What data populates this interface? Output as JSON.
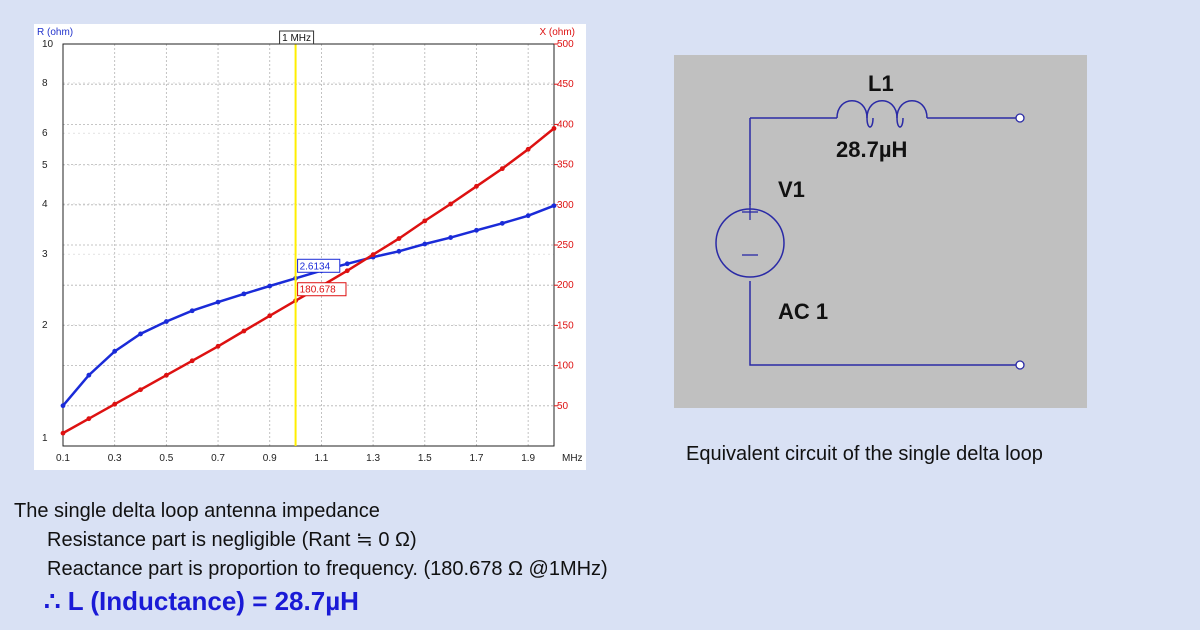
{
  "chart_data": {
    "type": "line",
    "left_axis": {
      "label": "R (ohm)",
      "scale": "log",
      "range": [
        1,
        10
      ],
      "ticks": [
        "1",
        "2",
        "3",
        "4",
        "5",
        "6",
        "8",
        "10"
      ],
      "color": "#2233cc"
    },
    "right_axis": {
      "label": "X (ohm)",
      "range": [
        0,
        500
      ],
      "ticks": [
        "50",
        "100",
        "150",
        "200",
        "250",
        "300",
        "350",
        "400",
        "450",
        "500"
      ],
      "color": "#dd1111"
    },
    "x_axis": {
      "unit": "MHz",
      "range": [
        0.1,
        2.0
      ],
      "ticks": [
        "0.1",
        "0.3",
        "0.5",
        "0.7",
        "0.9",
        "1.1",
        "1.3",
        "1.5",
        "1.7",
        "1.9"
      ]
    },
    "grid": true,
    "marker": {
      "x": 1.0,
      "label": "1 MHz",
      "color": "#ffee00"
    },
    "series": [
      {
        "axis": "left",
        "color": "#1a2bd8",
        "x": [
          0.1,
          0.2,
          0.3,
          0.4,
          0.5,
          0.6,
          0.7,
          0.8,
          0.9,
          1.0,
          1.1,
          1.2,
          1.3,
          1.4,
          1.5,
          1.6,
          1.7,
          1.8,
          1.9,
          2.0
        ],
        "y": [
          1.26,
          1.5,
          1.72,
          1.9,
          2.04,
          2.17,
          2.28,
          2.39,
          2.5,
          2.6134,
          2.73,
          2.84,
          2.95,
          3.05,
          3.18,
          3.3,
          3.44,
          3.58,
          3.74,
          3.96
        ]
      },
      {
        "axis": "right",
        "color": "#dd1111",
        "x": [
          0.1,
          0.2,
          0.3,
          0.4,
          0.5,
          0.6,
          0.7,
          0.8,
          0.9,
          1.0,
          1.1,
          1.2,
          1.3,
          1.4,
          1.5,
          1.6,
          1.7,
          1.8,
          1.9,
          2.0
        ],
        "y": [
          16,
          34,
          52,
          70,
          88,
          106,
          124,
          143,
          162,
          180.678,
          199,
          218,
          238,
          258,
          280,
          301,
          323,
          345,
          369,
          395
        ]
      }
    ],
    "annotations": [
      {
        "text": "2.6134",
        "color": "#1a2bd8"
      },
      {
        "text": "180.678",
        "color": "#dd1111"
      }
    ]
  },
  "circuit": {
    "inductor_name": "L1",
    "inductor_value": "28.7µH",
    "source_name": "V1",
    "source_type": "AC 1"
  },
  "circuit_caption": "Equivalent circuit of the single delta loop",
  "description": {
    "line1": "The single delta loop antenna impedance",
    "line2": "Resistance part is negligible (Rant ≒ 0 Ω)",
    "line3": "Reactance part  is proportion to frequency.  (180.678 Ω @1MHz)",
    "conclusion": "∴ L (Inductance) = 28.7µH"
  }
}
